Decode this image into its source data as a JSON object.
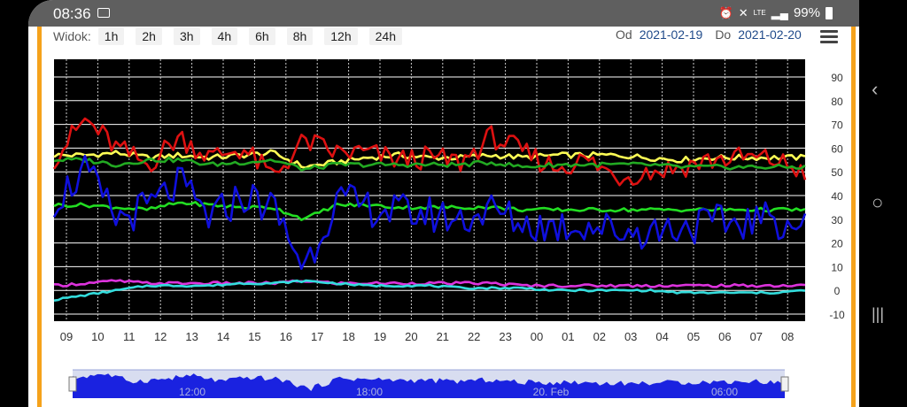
{
  "status_bar": {
    "time": "08:36",
    "battery": "99%",
    "icons": [
      "image-icon",
      "alarm-icon",
      "mute-icon",
      "lte-icon",
      "signal-icon",
      "battery-icon"
    ]
  },
  "toolbar": {
    "view_label": "Widok:",
    "ranges": [
      "1h",
      "2h",
      "3h",
      "4h",
      "6h",
      "8h",
      "12h",
      "24h"
    ],
    "from_label": "Od",
    "from_date": "2021-02-19",
    "to_label": "Do",
    "to_date": "2021-02-20"
  },
  "chart_data": {
    "type": "line",
    "ylim": [
      -10,
      90
    ],
    "y_ticks": [
      "90",
      "80",
      "70",
      "60",
      "50",
      "40",
      "30",
      "20",
      "10",
      "0",
      "-10"
    ],
    "x_ticks": [
      "09",
      "10",
      "11",
      "12",
      "13",
      "14",
      "15",
      "16",
      "17",
      "18",
      "19",
      "20",
      "21",
      "22",
      "23",
      "00",
      "01",
      "02",
      "03",
      "04",
      "05",
      "06",
      "07",
      "08"
    ],
    "grid": true,
    "background": "#000000",
    "series": [
      {
        "color": "#ffff55",
        "values": [
          57,
          57,
          58,
          56,
          57,
          56,
          57,
          58,
          52,
          54,
          56,
          57,
          56,
          56,
          57,
          56,
          57,
          57,
          57,
          56,
          55,
          56,
          56,
          56,
          56
        ]
      },
      {
        "color": "#dd1111",
        "values": [
          56,
          72,
          60,
          53,
          65,
          56,
          60,
          48,
          63,
          58,
          58,
          55,
          56,
          54,
          65,
          58,
          52,
          55,
          48,
          50,
          52,
          55,
          56,
          55,
          50
        ]
      },
      {
        "color": "#22aa22",
        "values": [
          55,
          55,
          53,
          55,
          55,
          53,
          54,
          55,
          51,
          53,
          53,
          53,
          53,
          53,
          54,
          52,
          53,
          53,
          53,
          53,
          52,
          52,
          52,
          52,
          52
        ]
      },
      {
        "color": "#22dd22",
        "values": [
          36,
          36,
          35,
          34,
          37,
          36,
          35,
          35,
          30,
          36,
          36,
          35,
          35,
          35,
          35,
          34,
          34,
          34,
          34,
          34,
          34,
          34,
          34,
          34,
          34
        ]
      },
      {
        "color": "#1010dd",
        "values": [
          38,
          50,
          30,
          35,
          45,
          30,
          40,
          35,
          10,
          38,
          35,
          33,
          32,
          30,
          34,
          28,
          27,
          28,
          25,
          25,
          27,
          28,
          29,
          30,
          27
        ]
      },
      {
        "color": "#dd33dd",
        "values": [
          2,
          3,
          4,
          3,
          3,
          3,
          3,
          3,
          4,
          3,
          3,
          3,
          3,
          3,
          3,
          2,
          2,
          2,
          2,
          2,
          2,
          2,
          2,
          2,
          2
        ]
      },
      {
        "color": "#33dddd",
        "values": [
          -4,
          -2,
          0,
          2,
          2,
          2,
          3,
          3,
          4,
          3,
          2,
          2,
          2,
          1,
          1,
          1,
          0,
          0,
          0,
          0,
          -1,
          -1,
          -1,
          -1,
          0
        ]
      }
    ]
  },
  "navigator": {
    "labels": [
      "12:00",
      "18:00",
      "20. Feb",
      "06:00"
    ]
  },
  "nav_panel": {
    "back_glyph": "‹",
    "home_glyph": "○",
    "recents_glyph": "|||"
  }
}
